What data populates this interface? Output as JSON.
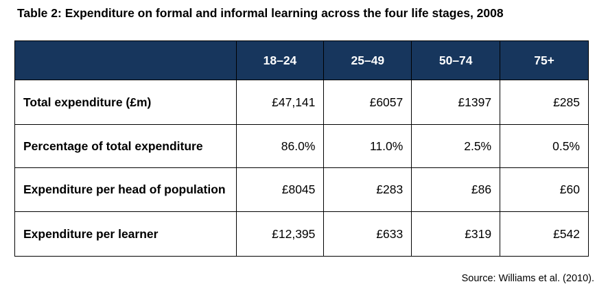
{
  "title": "Table 2: Expenditure on formal and informal learning across the four life stages, 2008",
  "table": {
    "columns": [
      "18–24",
      "25–49",
      "50–74",
      "75+"
    ],
    "rows": [
      {
        "label": "Total expenditure (£m)",
        "values": [
          "£47,141",
          "£6057",
          "£1397",
          "£285"
        ]
      },
      {
        "label": "Percentage of total expenditure",
        "values": [
          "86.0%",
          "11.0%",
          "2.5%",
          "0.5%"
        ]
      },
      {
        "label": "Expenditure per head of population",
        "values": [
          "£8045",
          "£283",
          "£86",
          "£60"
        ]
      },
      {
        "label": "Expenditure per learner",
        "values": [
          "£12,395",
          "£633",
          "£319",
          "£542"
        ]
      }
    ]
  },
  "source": "Source: Williams et al. (2010).",
  "colors": {
    "header_background": "#17365d",
    "header_text": "#ffffff"
  }
}
